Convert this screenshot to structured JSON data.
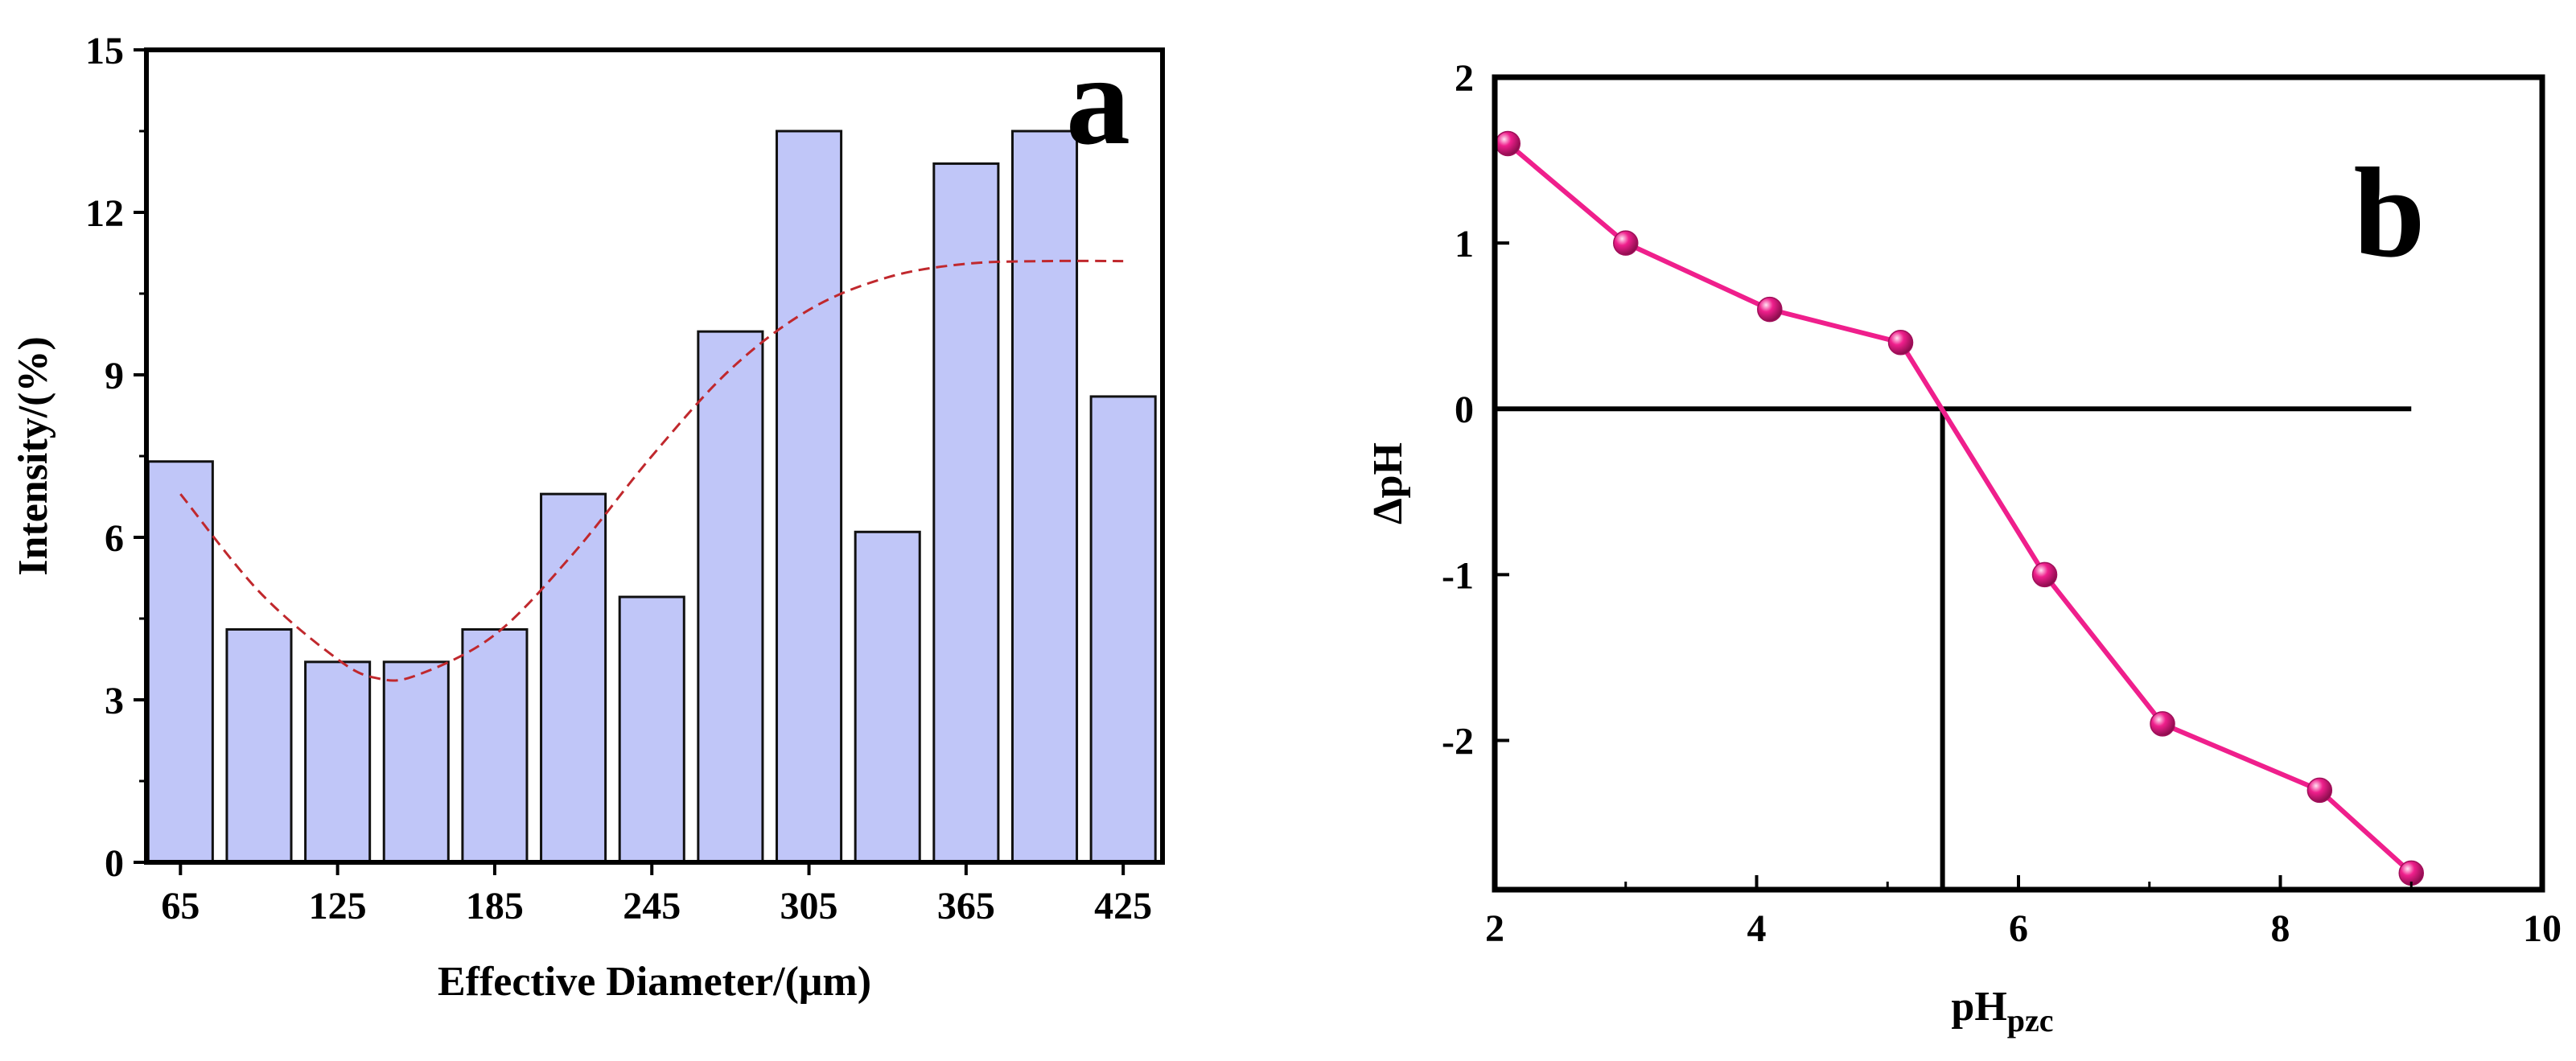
{
  "chart_data": [
    {
      "panel": "a",
      "type": "bar",
      "title": "",
      "xlabel": "Effective Diameter/(μm)",
      "ylabel": "Intensity/(%)",
      "categories": [
        "65",
        "95",
        "125",
        "155",
        "185",
        "215",
        "245",
        "275",
        "305",
        "335",
        "365",
        "395",
        "425"
      ],
      "x": [
        65,
        95,
        125,
        155,
        185,
        215,
        245,
        275,
        305,
        335,
        365,
        395,
        425
      ],
      "values": [
        7.4,
        4.3,
        3.7,
        3.7,
        4.3,
        6.8,
        4.9,
        9.8,
        13.5,
        6.1,
        12.9,
        13.5,
        8.6
      ],
      "xticks": [
        "65",
        "125",
        "185",
        "245",
        "305",
        "365",
        "425"
      ],
      "yticks": [
        "0",
        "3",
        "6",
        "9",
        "12",
        "15"
      ],
      "ylim": [
        0,
        15
      ],
      "xlim": [
        52,
        440
      ],
      "fit_curve": {
        "style": "dashed",
        "color": "#c0282d",
        "x": [
          65,
          95,
          125,
          140,
          155,
          185,
          215,
          245,
          275,
          305,
          335,
          365,
          395,
          425
        ],
        "y": [
          6.8,
          5.0,
          3.75,
          3.4,
          3.45,
          4.2,
          5.7,
          7.5,
          9.1,
          10.2,
          10.8,
          11.05,
          11.1,
          11.1
        ]
      },
      "bar_color": "#c0c6f8",
      "grid": false,
      "legend": "none"
    },
    {
      "panel": "b",
      "type": "line",
      "title": "",
      "xlabel": "pH",
      "xlabel_sub": "pzc",
      "ylabel": "ΔpH",
      "x": [
        2.1,
        3.0,
        4.1,
        5.1,
        6.2,
        7.1,
        8.3,
        9.0
      ],
      "y": [
        1.6,
        1.0,
        0.6,
        0.4,
        -1.0,
        -1.9,
        -2.3,
        -2.8
      ],
      "xticks": [
        "2",
        "4",
        "6",
        "8",
        "10"
      ],
      "yticks": [
        "-2",
        "-1",
        "0",
        "1",
        "2"
      ],
      "xlim": [
        2,
        10
      ],
      "ylim": [
        -2.9,
        2
      ],
      "series_color": "#ef1f8c",
      "zero_line": {
        "y": 0,
        "x_end": 9
      },
      "intercept": {
        "x": 5.42
      },
      "grid": false,
      "legend": "none"
    }
  ],
  "panels": {
    "a": {
      "letter": "a"
    },
    "b": {
      "letter": "b"
    }
  }
}
